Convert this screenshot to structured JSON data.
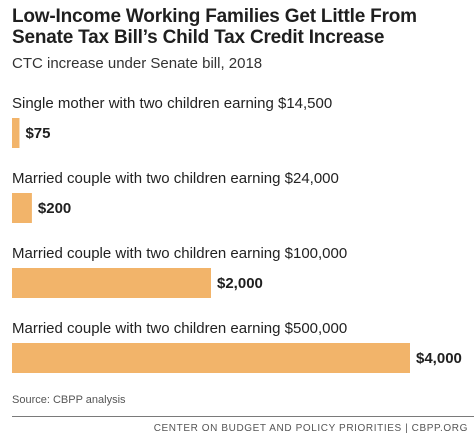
{
  "header": {
    "title_line1": "Low-Income Working Families Get Little From",
    "title_line2": "Senate Tax Bill’s Child Tax Credit Increase",
    "subtitle": "CTC increase under Senate bill, 2018"
  },
  "chart_data": {
    "type": "bar",
    "orientation": "horizontal",
    "title": "Low-Income Working Families Get Little From Senate Tax Bill’s Child Tax Credit Increase",
    "subtitle": "CTC increase under Senate bill, 2018",
    "categories": [
      "Single mother with two children earning $14,500",
      "Married couple with two children earning $24,000",
      "Married couple with two children earning $100,000",
      "Married couple with two children earning $500,000"
    ],
    "values": [
      75,
      200,
      2000,
      4000
    ],
    "data_labels": [
      "$75",
      "$200",
      "$2,000",
      "$4,000"
    ],
    "xlim": [
      0,
      4000
    ],
    "grid": false,
    "legend": "none",
    "bar_color": "#f2b46a"
  },
  "footer": {
    "source": "Source: CBPP analysis",
    "org": "CENTER ON BUDGET AND POLICY PRIORITIES | CBPP.ORG"
  }
}
